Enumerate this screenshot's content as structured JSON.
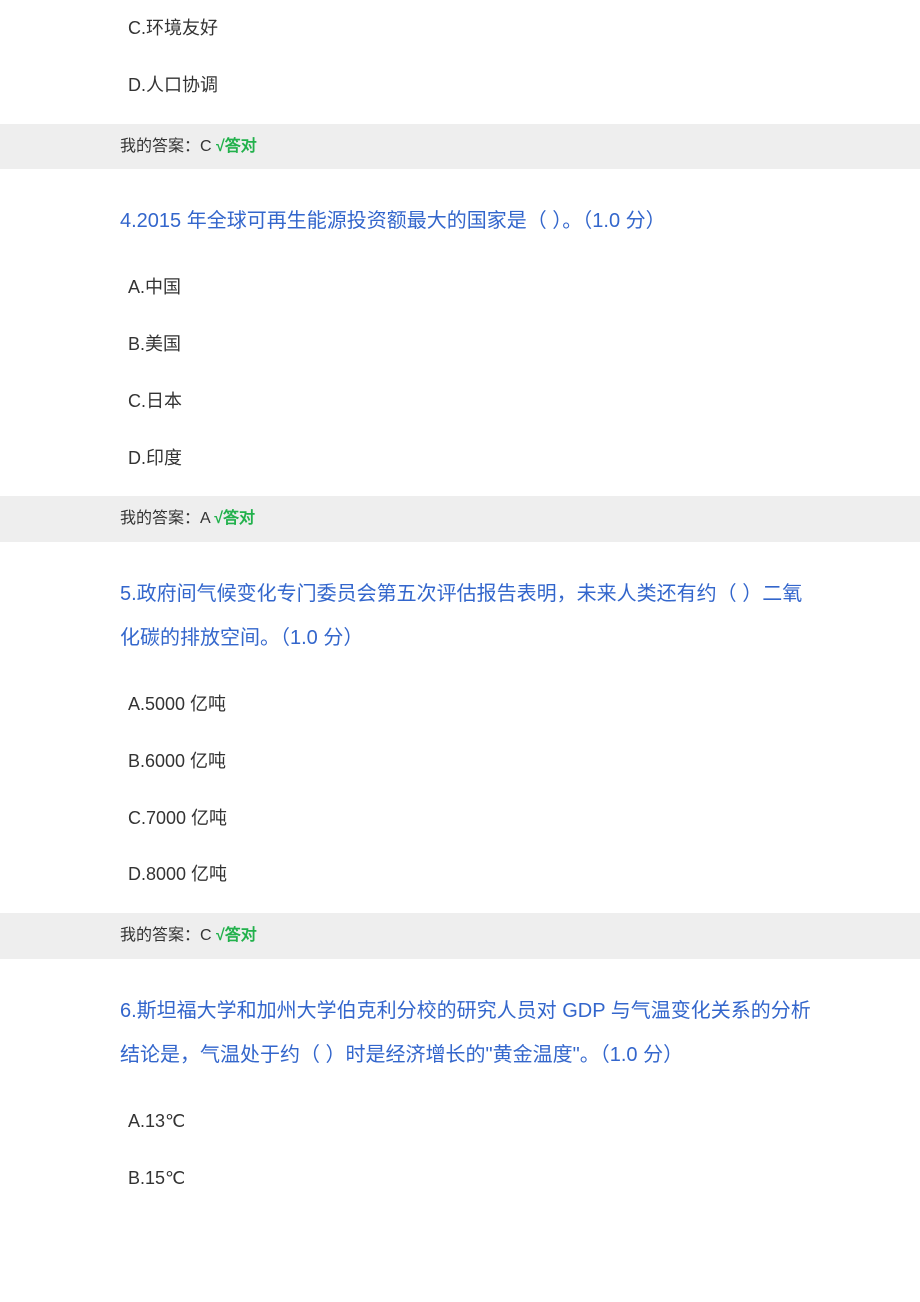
{
  "colors": {
    "question_text": "#3366cc",
    "option_text": "#333333",
    "answer_bg": "#eeeeee",
    "correct_text": "#22b14c",
    "body_bg": "#ffffff"
  },
  "typography": {
    "question_fontsize": 20,
    "option_fontsize": 18,
    "answer_fontsize": 16,
    "font_family": "Microsoft YaHei"
  },
  "partial_question_3": {
    "options": {
      "c": "C.环境友好",
      "d": "D.人口协调"
    },
    "answer_prefix": "我的答案：C",
    "checkmark": "√",
    "correct_label": "答对"
  },
  "question_4": {
    "text": "4.2015 年全球可再生能源投资额最大的国家是（ ）。（1.0 分）",
    "options": {
      "a": "A.中国",
      "b": "B.美国",
      "c": "C.日本",
      "d": "D.印度"
    },
    "answer_prefix": "我的答案：A",
    "checkmark": "√",
    "correct_label": "答对"
  },
  "question_5": {
    "text": "5.政府间气候变化专门委员会第五次评估报告表明，未来人类还有约（ ）二氧化碳的排放空间。（1.0 分）",
    "options": {
      "a": "A.5000 亿吨",
      "b": "B.6000 亿吨",
      "c": "C.7000 亿吨",
      "d": "D.8000 亿吨"
    },
    "answer_prefix": "我的答案：C",
    "checkmark": "√",
    "correct_label": "答对"
  },
  "question_6": {
    "text": "6.斯坦福大学和加州大学伯克利分校的研究人员对 GDP 与气温变化关系的分析结论是，气温处于约（ ）时是经济增长的\"黄金温度\"。（1.0 分）",
    "options": {
      "a": "A.13℃",
      "b": "B.15℃"
    }
  }
}
